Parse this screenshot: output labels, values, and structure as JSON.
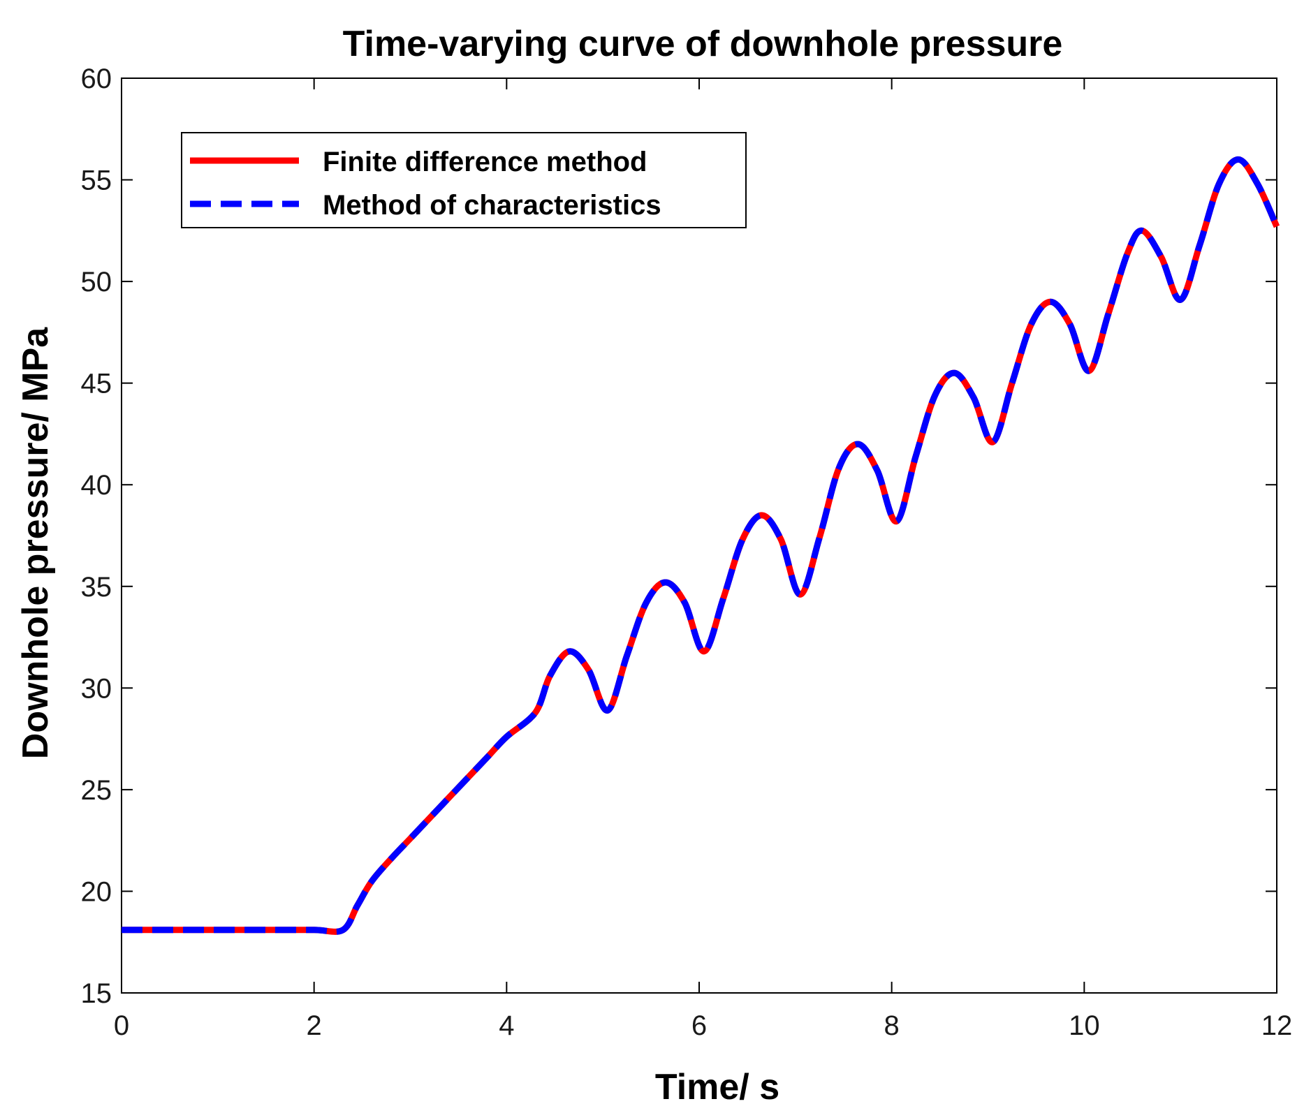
{
  "chart_data": {
    "type": "line",
    "title": "Time-varying curve of downhole pressure",
    "xlabel": "Time/ s",
    "ylabel": "Downhole pressure/ MPa",
    "xlim": [
      0,
      12
    ],
    "ylim": [
      15,
      60
    ],
    "xticks": [
      0,
      2,
      4,
      6,
      8,
      10,
      12
    ],
    "yticks": [
      15,
      20,
      25,
      30,
      35,
      40,
      45,
      50,
      55,
      60
    ],
    "grid": false,
    "legend_position": "top-left",
    "series": [
      {
        "name": "Finite difference method",
        "color": "#ff0000",
        "style": "solid",
        "x": [
          0,
          0.5,
          1.0,
          1.5,
          2.0,
          2.3,
          2.45,
          2.6,
          2.8,
          3.0,
          3.2,
          3.4,
          3.6,
          3.8,
          4.0,
          4.3,
          4.45,
          4.65,
          4.85,
          5.05,
          5.25,
          5.45,
          5.65,
          5.85,
          6.05,
          6.25,
          6.45,
          6.65,
          6.85,
          7.05,
          7.25,
          7.45,
          7.65,
          7.85,
          8.05,
          8.25,
          8.45,
          8.65,
          8.85,
          9.05,
          9.25,
          9.45,
          9.65,
          9.85,
          10.05,
          10.25,
          10.45,
          10.6,
          10.8,
          11.0,
          11.2,
          11.4,
          11.6,
          11.8,
          12.0
        ],
        "y": [
          18.1,
          18.1,
          18.1,
          18.1,
          18.1,
          18.1,
          19.3,
          20.5,
          21.6,
          22.6,
          23.6,
          24.6,
          25.6,
          26.6,
          27.6,
          28.8,
          30.6,
          31.8,
          30.9,
          28.9,
          31.6,
          34.2,
          35.2,
          34.2,
          31.8,
          34.4,
          37.3,
          38.5,
          37.3,
          34.6,
          37.4,
          40.8,
          42.0,
          40.7,
          38.2,
          41.4,
          44.4,
          45.5,
          44.3,
          42.1,
          45.0,
          47.9,
          49.0,
          47.9,
          45.6,
          48.4,
          51.4,
          52.5,
          51.2,
          49.1,
          51.8,
          54.8,
          56.0,
          54.8,
          52.7
        ]
      },
      {
        "name": "Method of characteristics",
        "color": "#0000ff",
        "style": "dashed",
        "x": [
          0,
          0.5,
          1.0,
          1.5,
          2.0,
          2.3,
          2.45,
          2.6,
          2.8,
          3.0,
          3.2,
          3.4,
          3.6,
          3.8,
          4.0,
          4.3,
          4.45,
          4.65,
          4.85,
          5.05,
          5.25,
          5.45,
          5.65,
          5.85,
          6.05,
          6.25,
          6.45,
          6.65,
          6.85,
          7.05,
          7.25,
          7.45,
          7.65,
          7.85,
          8.05,
          8.25,
          8.45,
          8.65,
          8.85,
          9.05,
          9.25,
          9.45,
          9.65,
          9.85,
          10.05,
          10.25,
          10.45,
          10.6,
          10.8,
          11.0,
          11.2,
          11.4,
          11.6,
          11.8,
          12.0
        ],
        "y": [
          18.1,
          18.1,
          18.1,
          18.1,
          18.1,
          18.1,
          19.3,
          20.5,
          21.6,
          22.6,
          23.6,
          24.6,
          25.6,
          26.6,
          27.6,
          28.8,
          30.6,
          31.8,
          30.9,
          28.9,
          31.6,
          34.2,
          35.2,
          34.2,
          31.8,
          34.4,
          37.3,
          38.5,
          37.3,
          34.6,
          37.4,
          40.8,
          42.0,
          40.7,
          38.2,
          41.4,
          44.4,
          45.5,
          44.3,
          42.1,
          45.0,
          47.9,
          49.0,
          47.9,
          45.6,
          48.4,
          51.4,
          52.5,
          51.2,
          49.1,
          51.8,
          54.8,
          56.0,
          54.8,
          52.7
        ]
      }
    ]
  }
}
